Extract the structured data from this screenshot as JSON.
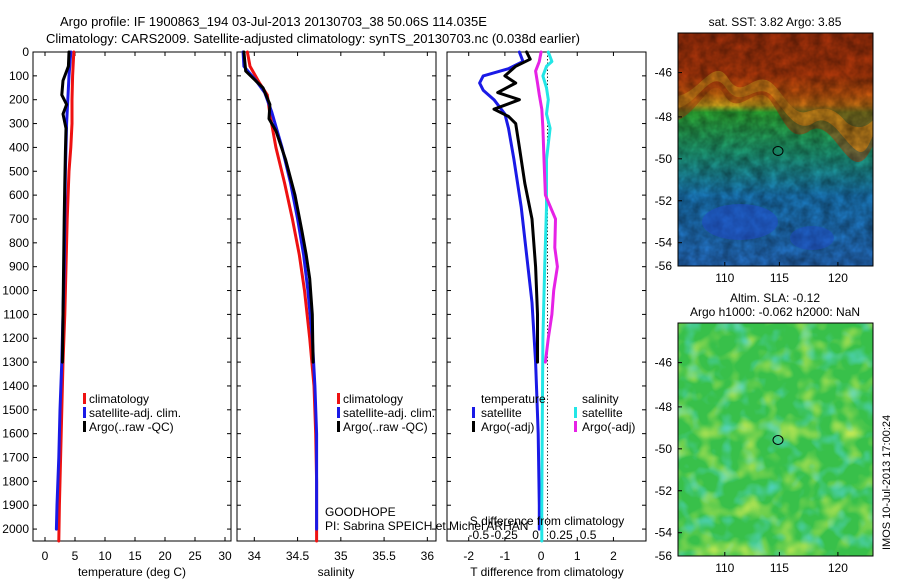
{
  "title": {
    "line1": "Argo profile: IF 1900863_194 03-Jul-2013 20130703_38 50.06S 114.035E",
    "line2": "Climatology: CARS2009. Satellite-adjusted climatology: synTS_20130703.nc (0.038d earlier)"
  },
  "colors": {
    "red": "#ee1111",
    "blue": "#1a1ae6",
    "black": "#000000",
    "cyan": "#22e6e6",
    "magenta": "#e622e6"
  },
  "chart_data": [
    {
      "type": "line",
      "name": "temperature-panel",
      "xlabel": "temperature (deg C)",
      "xlim": [
        -2,
        31
      ],
      "ylim": [
        0,
        2050
      ],
      "y_reversed": true,
      "xticks": [
        0,
        5,
        10,
        15,
        20,
        25,
        30
      ],
      "yticks": [
        0,
        100,
        200,
        300,
        400,
        500,
        600,
        700,
        800,
        900,
        1000,
        1100,
        1200,
        1300,
        1400,
        1500,
        1600,
        1700,
        1800,
        1900,
        2000
      ],
      "legend": [
        "climatology",
        "satellite-adj. clim.",
        "Argo(..raw -QC)"
      ],
      "series": [
        {
          "name": "climatology",
          "color": "red",
          "points": [
            [
              4.8,
              0
            ],
            [
              4.6,
              100
            ],
            [
              4.5,
              200
            ],
            [
              4.5,
              300
            ],
            [
              4.3,
              400
            ],
            [
              4.0,
              500
            ],
            [
              3.7,
              700
            ],
            [
              3.5,
              900
            ],
            [
              3.3,
              1100
            ],
            [
              3.0,
              1300
            ],
            [
              2.8,
              1500
            ],
            [
              2.6,
              1700
            ],
            [
              2.4,
              1900
            ],
            [
              2.3,
              2050
            ]
          ]
        },
        {
          "name": "satellite-adj. clim.",
          "color": "blue",
          "points": [
            [
              4.3,
              0
            ],
            [
              4.0,
              100
            ],
            [
              3.8,
              200
            ],
            [
              3.6,
              300
            ],
            [
              3.5,
              400
            ],
            [
              3.4,
              500
            ],
            [
              3.3,
              700
            ],
            [
              3.2,
              900
            ],
            [
              3.0,
              1100
            ],
            [
              2.8,
              1300
            ],
            [
              2.5,
              1500
            ],
            [
              2.3,
              1700
            ],
            [
              2.0,
              1900
            ],
            [
              1.9,
              2000
            ]
          ]
        },
        {
          "name": "Argo(..raw -QC)",
          "color": "black",
          "points": [
            [
              4.0,
              0
            ],
            [
              3.9,
              60
            ],
            [
              3.0,
              120
            ],
            [
              2.8,
              180
            ],
            [
              3.6,
              220
            ],
            [
              3.0,
              260
            ],
            [
              3.5,
              320
            ],
            [
              3.4,
              420
            ],
            [
              3.3,
              550
            ],
            [
              3.2,
              700
            ],
            [
              3.1,
              900
            ],
            [
              3.0,
              1100
            ],
            [
              2.9,
              1300
            ]
          ]
        }
      ]
    },
    {
      "type": "line",
      "name": "salinity-panel",
      "xlabel": "salinity",
      "xlim": [
        33.8,
        36.1
      ],
      "ylim": [
        0,
        2050
      ],
      "y_reversed": true,
      "xticks": [
        34,
        34.5,
        35,
        35.5,
        36
      ],
      "legend": [
        "climatology",
        "satellite-adj. clim.",
        "Argo(..raw -QC)"
      ],
      "annotation": [
        "GOODHOPE",
        "PI: Sabrina SPEICH et Michel ARHAN"
      ],
      "series": [
        {
          "name": "climatology",
          "color": "red",
          "points": [
            [
              33.92,
              0
            ],
            [
              33.95,
              60
            ],
            [
              34.06,
              130
            ],
            [
              34.15,
              180
            ],
            [
              34.18,
              260
            ],
            [
              34.25,
              400
            ],
            [
              34.35,
              550
            ],
            [
              34.44,
              700
            ],
            [
              34.52,
              850
            ],
            [
              34.58,
              1000
            ],
            [
              34.64,
              1200
            ],
            [
              34.69,
              1400
            ],
            [
              34.71,
              1600
            ],
            [
              34.72,
              1800
            ],
            [
              34.72,
              2050
            ]
          ]
        },
        {
          "name": "satellite-adj. clim.",
          "color": "blue",
          "points": [
            [
              33.87,
              0
            ],
            [
              33.88,
              60
            ],
            [
              34.02,
              120
            ],
            [
              34.12,
              170
            ],
            [
              34.2,
              250
            ],
            [
              34.32,
              400
            ],
            [
              34.42,
              550
            ],
            [
              34.5,
              700
            ],
            [
              34.57,
              850
            ],
            [
              34.62,
              1000
            ],
            [
              34.67,
              1200
            ],
            [
              34.7,
              1400
            ],
            [
              34.72,
              1600
            ],
            [
              34.72,
              1800
            ],
            [
              34.72,
              2000
            ]
          ]
        },
        {
          "name": "Argo(..raw -QC)",
          "color": "black",
          "points": [
            [
              33.88,
              0
            ],
            [
              33.9,
              80
            ],
            [
              34.1,
              150
            ],
            [
              34.18,
              220
            ],
            [
              34.17,
              280
            ],
            [
              34.25,
              330
            ],
            [
              34.36,
              450
            ],
            [
              34.47,
              600
            ],
            [
              34.55,
              750
            ],
            [
              34.6,
              850
            ],
            [
              34.64,
              950
            ],
            [
              34.67,
              1100
            ],
            [
              34.68,
              1300
            ]
          ]
        }
      ]
    },
    {
      "type": "line",
      "name": "difference-panel",
      "xlabel": "T difference from climatology",
      "secondary_xlabel": "S difference from climatology",
      "xlim": [
        -2.6,
        2.9
      ],
      "ylim": [
        0,
        2050
      ],
      "y_reversed": true,
      "xticks": [
        -2,
        -1,
        0,
        1,
        2
      ],
      "secondary_xticks": [
        "-0.5",
        "-0.25",
        "0",
        "0.25",
        "0.5"
      ],
      "secondary_xticks_at": [
        -1.72,
        -1.02,
        -0.15,
        0.55,
        1.3
      ],
      "legend_headers": [
        "temperature",
        "salinity"
      ],
      "legend": [
        "satellite",
        "Argo(-adj)",
        "satellite",
        "Argo(-adj)"
      ],
      "series": [
        {
          "name": "temperature satellite",
          "color": "blue",
          "points": [
            [
              -0.6,
              0
            ],
            [
              -0.5,
              40
            ],
            [
              -0.9,
              70
            ],
            [
              -1.6,
              100
            ],
            [
              -1.7,
              130
            ],
            [
              -1.6,
              160
            ],
            [
              -1.3,
              200
            ],
            [
              -1.0,
              260
            ],
            [
              -0.9,
              320
            ],
            [
              -0.75,
              450
            ],
            [
              -0.55,
              650
            ],
            [
              -0.4,
              850
            ],
            [
              -0.25,
              1050
            ],
            [
              -0.15,
              1300
            ],
            [
              -0.08,
              1600
            ],
            [
              -0.05,
              1900
            ],
            [
              -0.05,
              2000
            ]
          ]
        },
        {
          "name": "temperature Argo(-adj)",
          "color": "black",
          "points": [
            [
              -0.4,
              0
            ],
            [
              -0.3,
              30
            ],
            [
              -0.7,
              60
            ],
            [
              -1.0,
              100
            ],
            [
              -0.7,
              130
            ],
            [
              -1.2,
              170
            ],
            [
              -0.6,
              200
            ],
            [
              -1.3,
              240
            ],
            [
              -0.9,
              270
            ],
            [
              -0.7,
              300
            ],
            [
              -0.6,
              400
            ],
            [
              -0.45,
              550
            ],
            [
              -0.25,
              700
            ],
            [
              -0.15,
              900
            ],
            [
              -0.1,
              1100
            ],
            [
              -0.1,
              1300
            ]
          ]
        },
        {
          "name": "salinity satellite",
          "color": "cyan",
          "points": [
            [
              0.2,
              0
            ],
            [
              0.3,
              40
            ],
            [
              0.15,
              60
            ],
            [
              0.05,
              100
            ],
            [
              0.15,
              150
            ],
            [
              0.2,
              200
            ],
            [
              0.15,
              260
            ],
            [
              0.25,
              320
            ],
            [
              0.15,
              450
            ],
            [
              0.15,
              650
            ],
            [
              0.1,
              900
            ],
            [
              0.05,
              1200
            ],
            [
              0.03,
              1600
            ],
            [
              0.02,
              1900
            ],
            [
              0.02,
              2050
            ]
          ]
        },
        {
          "name": "salinity Argo(-adj)",
          "color": "magenta",
          "points": [
            [
              0.0,
              0
            ],
            [
              -0.05,
              40
            ],
            [
              -0.15,
              80
            ],
            [
              -0.1,
              130
            ],
            [
              -0.05,
              180
            ],
            [
              0.02,
              240
            ],
            [
              0.05,
              320
            ],
            [
              0.08,
              450
            ],
            [
              0.12,
              600
            ],
            [
              0.4,
              700
            ],
            [
              0.38,
              820
            ],
            [
              0.45,
              900
            ],
            [
              0.35,
              1000
            ],
            [
              0.3,
              1100
            ],
            [
              0.2,
              1200
            ],
            [
              0.12,
              1300
            ]
          ]
        }
      ]
    }
  ],
  "maps": [
    {
      "title": "sat. SST: 3.82 Argo: 3.85",
      "xticks": [
        "110",
        "115",
        "120"
      ],
      "yticks": [
        "-46",
        "-48",
        "-50",
        "-52",
        "-54",
        "-56"
      ]
    },
    {
      "title_line1": "Altim. SLA: -0.12",
      "title_line2": "Argo h1000: -0.062 h2000: NaN",
      "xticks": [
        "110",
        "115",
        "120"
      ],
      "yticks": [
        "-46",
        "-48",
        "-50",
        "-52",
        "-54",
        "-56"
      ]
    }
  ],
  "footer": {
    "stamp": "IMOS 10-Jul-2013 17:00:24"
  }
}
